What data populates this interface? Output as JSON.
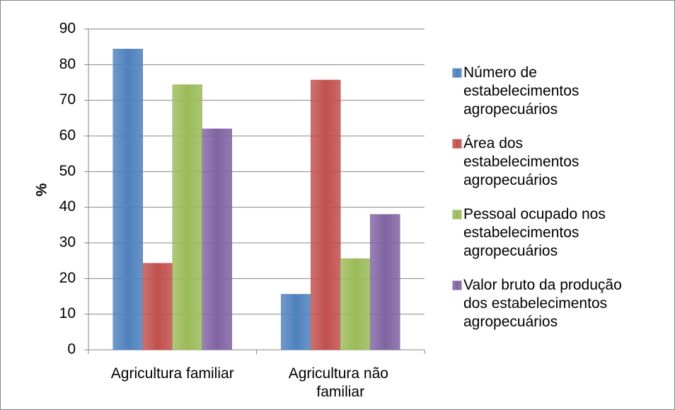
{
  "chart_data": {
    "type": "bar",
    "y_label": "%",
    "categories": [
      "Agricultura familiar",
      "Agricultura não familiar"
    ],
    "series": [
      {
        "name": "Número de estabelecimentos agropecuários",
        "color": "#4f81bd",
        "values": [
          84.4,
          15.6
        ]
      },
      {
        "name": "Área dos estabelecimentos agropecuários",
        "color": "#c0504d",
        "values": [
          24.3,
          75.7
        ]
      },
      {
        "name": "Pessoal ocupado nos estabelecimentos agropecuários",
        "color": "#9bbb59",
        "values": [
          74.4,
          25.6
        ]
      },
      {
        "name": "Valor bruto da produção dos estabelecimentos agropecuários",
        "color": "#8064a2",
        "values": [
          62,
          38
        ]
      }
    ],
    "ylim": [
      0,
      90
    ],
    "yticks": [
      0,
      10,
      20,
      30,
      40,
      50,
      60,
      70,
      80,
      90
    ],
    "grid": true,
    "legend": "right"
  }
}
